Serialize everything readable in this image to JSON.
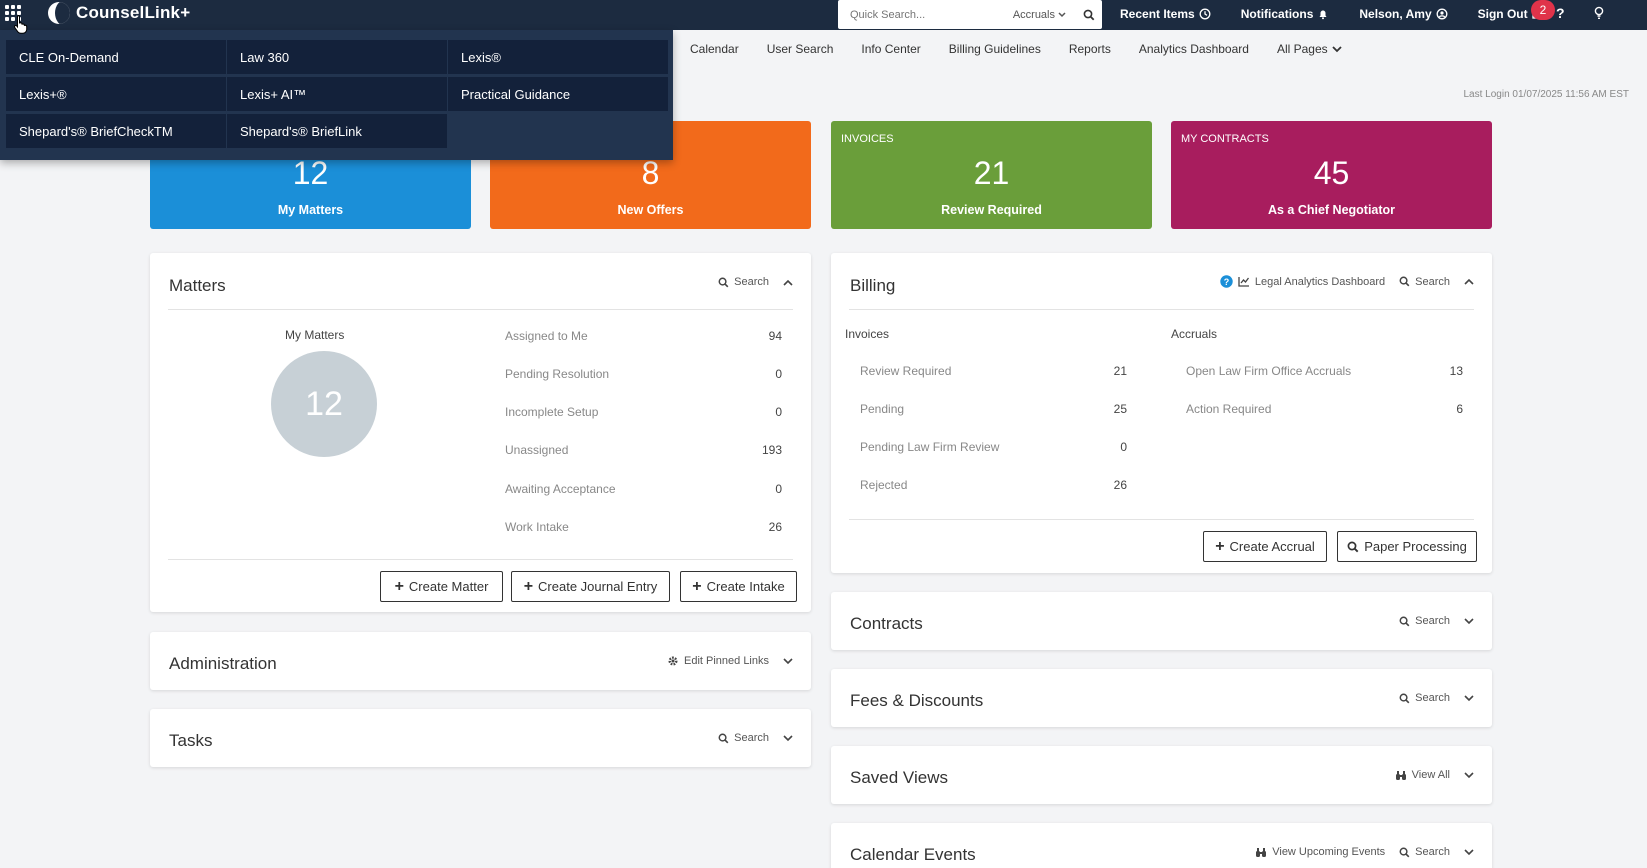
{
  "app": {
    "name": "CounselLink+"
  },
  "search": {
    "placeholder": "Quick Search...",
    "scope": "Accruals"
  },
  "top_links": [
    "Recent Items",
    "Notifications",
    "Nelson, Amy",
    "Sign Out"
  ],
  "notification_count": "2",
  "nav": [
    "Calendar",
    "User Search",
    "Info Center",
    "Billing Guidelines",
    "Reports",
    "Analytics Dashboard",
    "All Pages"
  ],
  "last_login": "Last Login 01/07/2025 11:56 AM EST",
  "app_menu": [
    "CLE On-Demand",
    "Law 360",
    "Lexis®",
    "Lexis+®",
    "Lexis+ AI™",
    "Practical Guidance",
    "Shepard's® BriefCheckTM",
    "Shepard's® BriefLink"
  ],
  "tiles": [
    {
      "label": "",
      "num": "12",
      "sub": "My Matters",
      "color": "#1b8fd8"
    },
    {
      "label": "",
      "num": "8",
      "sub": "New Offers",
      "color": "#f26a1b"
    },
    {
      "label": "INVOICES",
      "num": "21",
      "sub": "Review Required",
      "color": "#6a9e3a"
    },
    {
      "label": "MY CONTRACTS",
      "num": "45",
      "sub": "As a Chief Negotiator",
      "color": "#a81d5e"
    }
  ],
  "matters": {
    "title": "Matters",
    "search": "Search",
    "my_matters_label": "My Matters",
    "my_matters_count": "12",
    "rows": [
      {
        "label": "Assigned to Me",
        "value": "94"
      },
      {
        "label": "Pending Resolution",
        "value": "0"
      },
      {
        "label": "Incomplete Setup",
        "value": "0"
      },
      {
        "label": "Unassigned",
        "value": "193"
      },
      {
        "label": "Awaiting Acceptance",
        "value": "0"
      },
      {
        "label": "Work Intake",
        "value": "26"
      }
    ],
    "buttons": [
      "Create Matter",
      "Create Journal Entry",
      "Create Intake"
    ]
  },
  "billing": {
    "title": "Billing",
    "analytics_link": "Legal Analytics Dashboard",
    "search": "Search",
    "invoices_head": "Invoices",
    "accruals_head": "Accruals",
    "invoices": [
      {
        "label": "Review Required",
        "value": "21"
      },
      {
        "label": "Pending",
        "value": "25"
      },
      {
        "label": "Pending Law Firm Review",
        "value": "0"
      },
      {
        "label": "Rejected",
        "value": "26"
      }
    ],
    "accruals": [
      {
        "label": "Open Law Firm Office Accruals",
        "value": "13"
      },
      {
        "label": "Action Required",
        "value": "6"
      }
    ],
    "buttons": [
      "Create Accrual",
      "Paper Processing"
    ]
  },
  "administration": {
    "title": "Administration",
    "action": "Edit Pinned Links"
  },
  "tasks": {
    "title": "Tasks",
    "search": "Search"
  },
  "contracts": {
    "title": "Contracts",
    "search": "Search"
  },
  "fees": {
    "title": "Fees & Discounts",
    "search": "Search"
  },
  "saved_views": {
    "title": "Saved Views",
    "action": "View All"
  },
  "calendar_events": {
    "title": "Calendar Events",
    "action": "View Upcoming Events",
    "search": "Search"
  },
  "colors": {
    "topbar": "#1c2b40",
    "menu": "#22344f",
    "menu_item": "#13213a",
    "badge": "#e0334a"
  }
}
